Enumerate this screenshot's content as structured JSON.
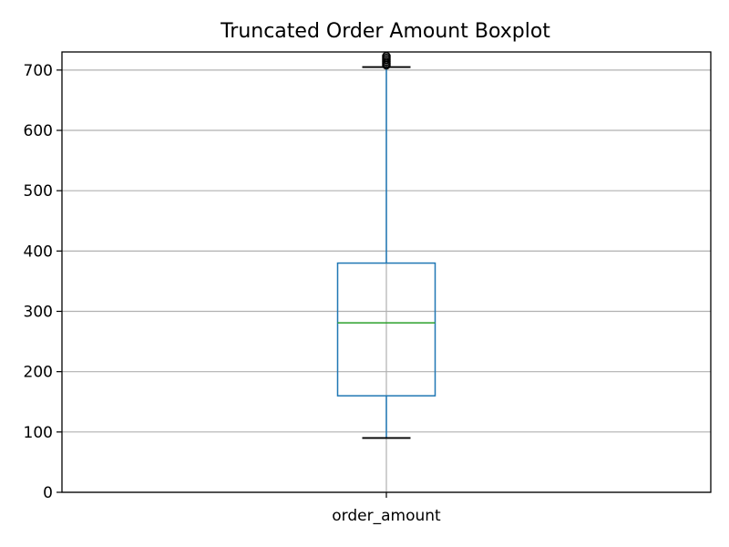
{
  "chart_data": {
    "type": "box",
    "title": "Truncated Order Amount Boxplot",
    "xlabel": "",
    "ylabel": "",
    "categories": [
      "order_amount"
    ],
    "boxes": [
      {
        "name": "order_amount",
        "whisker_low": 90,
        "q1": 160,
        "median": 281,
        "q3": 380,
        "whisker_high": 705,
        "outliers": [
          708,
          711,
          714,
          717,
          720,
          723
        ]
      }
    ],
    "ylim": [
      0,
      730
    ],
    "yticks": [
      0,
      100,
      200,
      300,
      400,
      500,
      600,
      700
    ],
    "grid": true,
    "colors": {
      "box": "#1f77b4",
      "whisker": "#1f77b4",
      "cap": "#000000",
      "median": "#2ca02c",
      "outlier": "#000000",
      "grid": "#b0b0b0",
      "axes": "#000000"
    }
  }
}
